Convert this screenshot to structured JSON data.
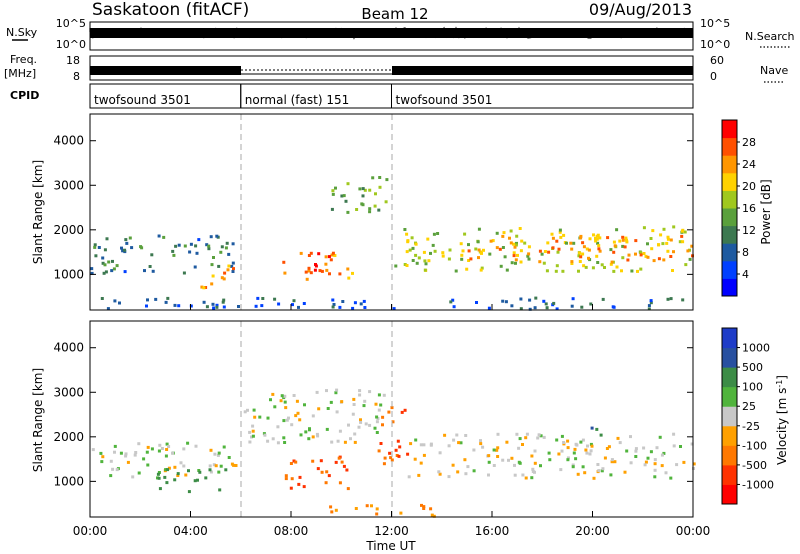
{
  "header": {
    "station": "Saskatoon (fitACF)",
    "beam": "Beam 12",
    "date": "09/Aug/2013"
  },
  "status_panels": {
    "nsky_label": "N.Sky",
    "nsky_ticks": [
      "10^5",
      "10^0"
    ],
    "nsearch_label": "N.Search",
    "nsearch_ticks": [
      "10^5",
      "10^0"
    ],
    "freq_label_1": "Freq.",
    "freq_label_2": "[MHz]",
    "freq_ticks": [
      "18",
      "8"
    ],
    "nave_label": "Nave",
    "nave_ticks": [
      "60",
      "0"
    ],
    "cpid_label": "CPID",
    "cpid_segments": [
      {
        "label": "twofsound 3501",
        "start": 0.0,
        "end": 6.0
      },
      {
        "label": "normal (fast) 151",
        "start": 6.0,
        "end": 12.0
      },
      {
        "label": "twofsound 3501",
        "start": 12.0,
        "end": 24.0
      }
    ]
  },
  "colors": {
    "power_scale": [
      "#0000ff",
      "#0040ff",
      "#1e5aa0",
      "#3c7850",
      "#5aa03c",
      "#a0c81e",
      "#ffd200",
      "#ff9600",
      "#ff5000",
      "#ff0000"
    ],
    "velocity_scale": [
      "#1e3cc8",
      "#2850a0",
      "#3c8c46",
      "#50b43c",
      "#c8c8c8",
      "#ffa000",
      "#ff7800",
      "#ff3200",
      "#ff0000"
    ]
  },
  "chart_data": [
    {
      "type": "heatmap",
      "title": "Power",
      "ylabel": "Slant Range [km]",
      "xlabel": "",
      "colorbar_label": "Power [dB]",
      "colorbar_ticks": [
        "28",
        "24",
        "20",
        "16",
        "12",
        "8",
        "4"
      ],
      "ylim": [
        200,
        4600
      ],
      "yticks": [
        "4000",
        "3000",
        "2000",
        "1000"
      ],
      "x_unit": "hours UT",
      "xlim": [
        0,
        24
      ],
      "regions": [
        {
          "t0": 0.0,
          "t1": 5.9,
          "r0": 1050,
          "r1": 1900,
          "level": 10
        },
        {
          "t0": 4.3,
          "t1": 5.7,
          "r0": 700,
          "r1": 1300,
          "level": 24
        },
        {
          "t0": 7.6,
          "t1": 9.9,
          "r0": 900,
          "r1": 1600,
          "level": 26
        },
        {
          "t0": 8.4,
          "t1": 9.3,
          "r0": 1000,
          "r1": 1400,
          "level": 30
        },
        {
          "t0": 10.0,
          "t1": 10.6,
          "r0": 900,
          "r1": 1300,
          "level": 22
        },
        {
          "t0": 9.5,
          "t1": 11.8,
          "r0": 2400,
          "r1": 3300,
          "level": 14
        },
        {
          "t0": 12.1,
          "t1": 24.0,
          "r0": 1100,
          "r1": 2100,
          "level": 18
        },
        {
          "t0": 15.0,
          "t1": 24.0,
          "r0": 1300,
          "r1": 1900,
          "level": 24
        },
        {
          "t0": 0.3,
          "t1": 24.0,
          "r0": 250,
          "r1": 500,
          "level": 8
        }
      ]
    },
    {
      "type": "heatmap",
      "title": "Velocity",
      "ylabel": "Slant Range [km]",
      "xlabel": "Time UT",
      "colorbar_label": "Velocity [m s^-1]",
      "colorbar_ticks": [
        "1000",
        "500",
        "100",
        "25",
        "-25",
        "-100",
        "-500",
        "-1000"
      ],
      "ylim": [
        200,
        4600
      ],
      "yticks": [
        "4000",
        "3000",
        "2000",
        "1000"
      ],
      "xticks": [
        "00:00",
        "04:00",
        "08:00",
        "12:00",
        "16:00",
        "20:00",
        "00:00"
      ],
      "xlim": [
        0,
        24
      ],
      "regions": [
        {
          "t0": 0.0,
          "t1": 6.0,
          "r0": 1100,
          "r1": 1900,
          "velocity": 0
        },
        {
          "t0": 2.6,
          "t1": 5.4,
          "r0": 800,
          "r1": 1300,
          "velocity": 150
        },
        {
          "t0": 6.0,
          "t1": 11.8,
          "r0": 1900,
          "r1": 3100,
          "velocity": 0
        },
        {
          "t0": 7.7,
          "t1": 10.3,
          "r0": 850,
          "r1": 1600,
          "velocity": -500
        },
        {
          "t0": 11.4,
          "t1": 12.6,
          "r0": 1400,
          "r1": 2700,
          "velocity": -500
        },
        {
          "t0": 12.6,
          "t1": 24.0,
          "r0": 1100,
          "r1": 2100,
          "velocity": 0
        },
        {
          "t0": 19.8,
          "t1": 20.4,
          "r0": 2000,
          "r1": 2400,
          "velocity": 300
        },
        {
          "t0": 9.5,
          "t1": 14.0,
          "r0": 250,
          "r1": 500,
          "velocity": -100
        }
      ]
    }
  ]
}
